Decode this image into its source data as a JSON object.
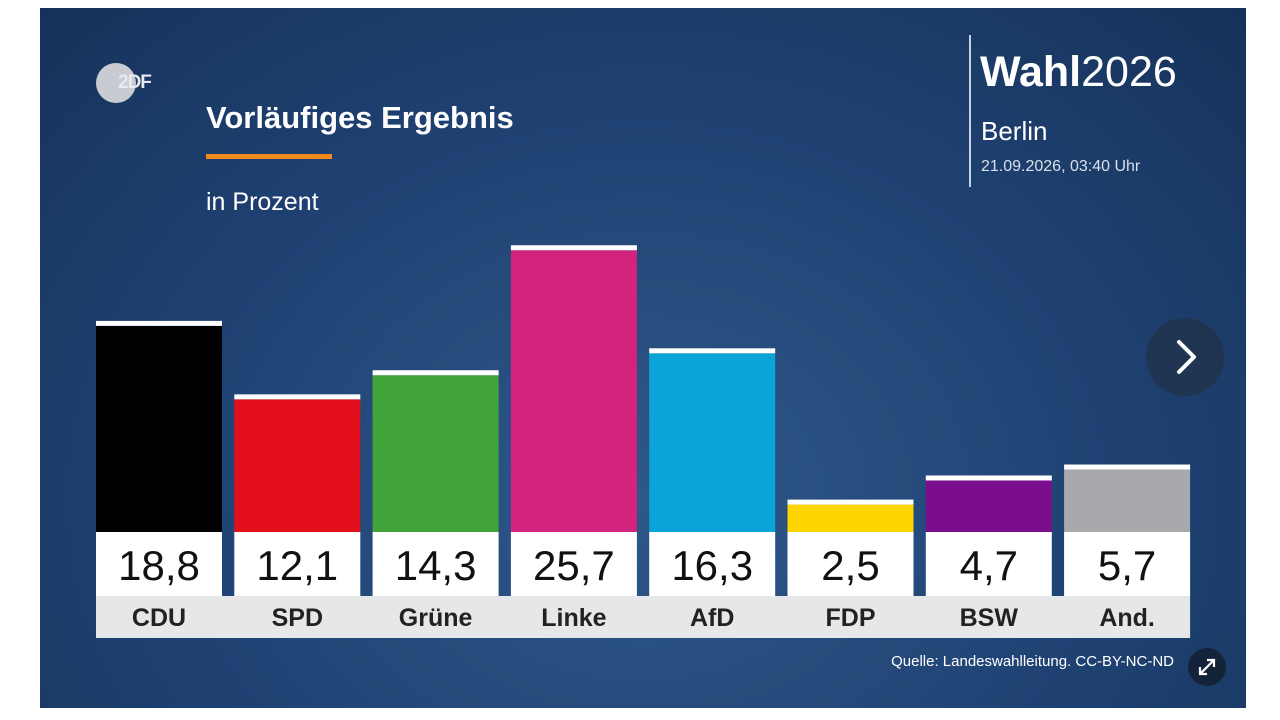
{
  "header": {
    "logo_text": "2DF",
    "title": "Vorläufiges Ergebnis",
    "subtitle": "in Prozent",
    "brand_bold": "Wahl",
    "brand_year": "2026",
    "region": "Berlin",
    "timestamp": "21.09.2026, 03:40 Uhr"
  },
  "footer": {
    "source": "Quelle: Landeswahlleitung. CC-BY-NC-ND"
  },
  "controls": {
    "next_icon": "chevron-right-icon",
    "expand_icon": "expand-icon"
  },
  "colors": {
    "accent_rule": "#f08a1c",
    "background": "#1f4273"
  },
  "chart_data": {
    "type": "bar",
    "title": "Vorläufiges Ergebnis",
    "subtitle": "in Prozent",
    "categories": [
      "CDU",
      "SPD",
      "Grüne",
      "Linke",
      "AfD",
      "FDP",
      "BSW",
      "And."
    ],
    "values": [
      18.8,
      12.1,
      14.3,
      25.7,
      16.3,
      2.5,
      4.7,
      5.7
    ],
    "value_labels": [
      "18,8",
      "12,1",
      "14,3",
      "25,7",
      "16,3",
      "2,5",
      "4,7",
      "5,7"
    ],
    "colors": [
      "#000000",
      "#e3101b",
      "#43a33b",
      "#d2237f",
      "#0aa4d8",
      "#ffd500",
      "#7a0e8c",
      "#a7a9ad"
    ],
    "ylim": [
      0,
      27
    ]
  }
}
